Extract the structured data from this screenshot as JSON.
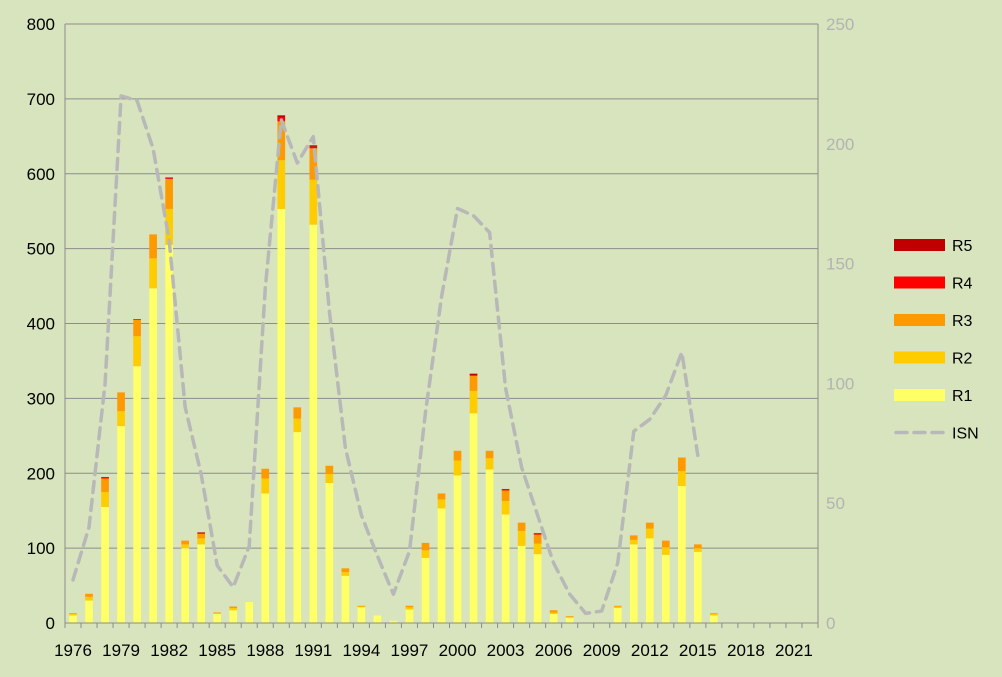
{
  "chart_data": {
    "type": "bar",
    "stacked": true,
    "title": "",
    "xlabel": "",
    "ylabel": "",
    "ylim": [
      0,
      800
    ],
    "y2lim": [
      0,
      250
    ],
    "yticks": [
      "0",
      "100",
      "200",
      "300",
      "400",
      "500",
      "600",
      "700",
      "800"
    ],
    "y2ticks": [
      "0",
      "50",
      "100",
      "150",
      "200",
      "250"
    ],
    "xtick_labels": [
      "1976",
      "1979",
      "1982",
      "1985",
      "1988",
      "1991",
      "1994",
      "1997",
      "2000",
      "2003",
      "2006",
      "2009",
      "2012",
      "2015",
      "2018",
      "2021"
    ],
    "grid": true,
    "legend_position": "right",
    "categories": [
      1976,
      1977,
      1978,
      1979,
      1980,
      1981,
      1982,
      1983,
      1984,
      1985,
      1986,
      1987,
      1988,
      1989,
      1990,
      1991,
      1992,
      1993,
      1994,
      1995,
      1996,
      1997,
      1998,
      1999,
      2000,
      2001,
      2002,
      2003,
      2004,
      2005,
      2006,
      2007,
      2008,
      2009,
      2010,
      2011,
      2012,
      2013,
      2014,
      2015,
      2016,
      2017,
      2018,
      2019,
      2020,
      2021,
      2022
    ],
    "series": [
      {
        "name": "R1",
        "color": "#ffff66",
        "values": [
          10,
          30,
          155,
          263,
          343,
          447,
          505,
          100,
          105,
          12,
          17,
          28,
          173,
          553,
          255,
          532,
          187,
          63,
          21,
          10,
          3,
          18,
          87,
          153,
          197,
          280,
          205,
          145,
          103,
          92,
          12,
          7,
          0,
          0,
          20,
          105,
          113,
          91,
          183,
          95,
          10,
          0,
          0,
          0,
          0,
          0,
          0
        ]
      },
      {
        "name": "R2",
        "color": "#ffcc00",
        "values": [
          2,
          5,
          20,
          20,
          40,
          40,
          48,
          5,
          8,
          1,
          3,
          0,
          20,
          65,
          18,
          60,
          12,
          5,
          1,
          0,
          0,
          3,
          10,
          12,
          20,
          30,
          15,
          18,
          20,
          14,
          2,
          1,
          0,
          0,
          2,
          6,
          13,
          10,
          20,
          5,
          2,
          0,
          0,
          0,
          0,
          0,
          0
        ]
      },
      {
        "name": "R3",
        "color": "#ff9900",
        "values": [
          1,
          4,
          18,
          25,
          22,
          32,
          40,
          5,
          6,
          1,
          2,
          0,
          13,
          52,
          15,
          42,
          11,
          5,
          1,
          0,
          0,
          2,
          10,
          8,
          13,
          20,
          10,
          14,
          11,
          12,
          3,
          1,
          0,
          0,
          1,
          6,
          8,
          9,
          18,
          5,
          1,
          0,
          0,
          0,
          0,
          0,
          0
        ]
      },
      {
        "name": "R4",
        "color": "#ff0000",
        "values": [
          0,
          0,
          1,
          0,
          1,
          0,
          1,
          0,
          1,
          0,
          0,
          0,
          0,
          5,
          0,
          2,
          0,
          0,
          0,
          0,
          0,
          0,
          0,
          0,
          0,
          1,
          0,
          1,
          0,
          1,
          0,
          0,
          0,
          0,
          0,
          0,
          0,
          0,
          0,
          0,
          0,
          0,
          0,
          0,
          0,
          0,
          0
        ]
      },
      {
        "name": "R5",
        "color": "#c00000",
        "values": [
          0,
          0,
          1,
          0,
          0,
          0,
          1,
          0,
          1,
          0,
          0,
          0,
          0,
          3,
          0,
          2,
          0,
          0,
          0,
          0,
          0,
          0,
          0,
          0,
          0,
          2,
          0,
          1,
          0,
          1,
          0,
          0,
          0,
          0,
          0,
          0,
          0,
          0,
          0,
          0,
          0,
          0,
          0,
          0,
          0,
          0,
          0
        ]
      }
    ],
    "line_series": {
      "name": "ISN",
      "axis": "right",
      "color": "#b8b8b8",
      "style": "dashed",
      "years": [
        1976,
        1977,
        1978,
        1979,
        1980,
        1981,
        1982,
        1983,
        1984,
        1985,
        1986,
        1987,
        1988,
        1989,
        1990,
        1991,
        1992,
        1993,
        1994,
        1995,
        1996,
        1997,
        1998,
        1999,
        2000,
        2001,
        2002,
        2003,
        2004,
        2005,
        2006,
        2007,
        2008,
        2009,
        2010,
        2011,
        2012,
        2013,
        2014,
        2015
      ],
      "values": [
        18,
        40,
        100,
        220,
        218,
        198,
        160,
        90,
        62,
        24,
        15,
        32,
        140,
        210,
        192,
        203,
        130,
        73,
        45,
        28,
        12,
        30,
        88,
        136,
        173,
        170,
        163,
        98,
        65,
        45,
        25,
        12,
        4,
        5,
        25,
        80,
        85,
        95,
        113,
        70
      ]
    }
  },
  "legend": {
    "items": [
      {
        "label": "R5",
        "color": "#c00000",
        "kind": "box"
      },
      {
        "label": "R4",
        "color": "#ff0000",
        "kind": "box"
      },
      {
        "label": "R3",
        "color": "#ff9900",
        "kind": "box"
      },
      {
        "label": "R2",
        "color": "#ffcc00",
        "kind": "box"
      },
      {
        "label": "R1",
        "color": "#ffff66",
        "kind": "box"
      },
      {
        "label": "ISN",
        "color": "#b8b8b8",
        "kind": "dashed-line"
      }
    ]
  }
}
